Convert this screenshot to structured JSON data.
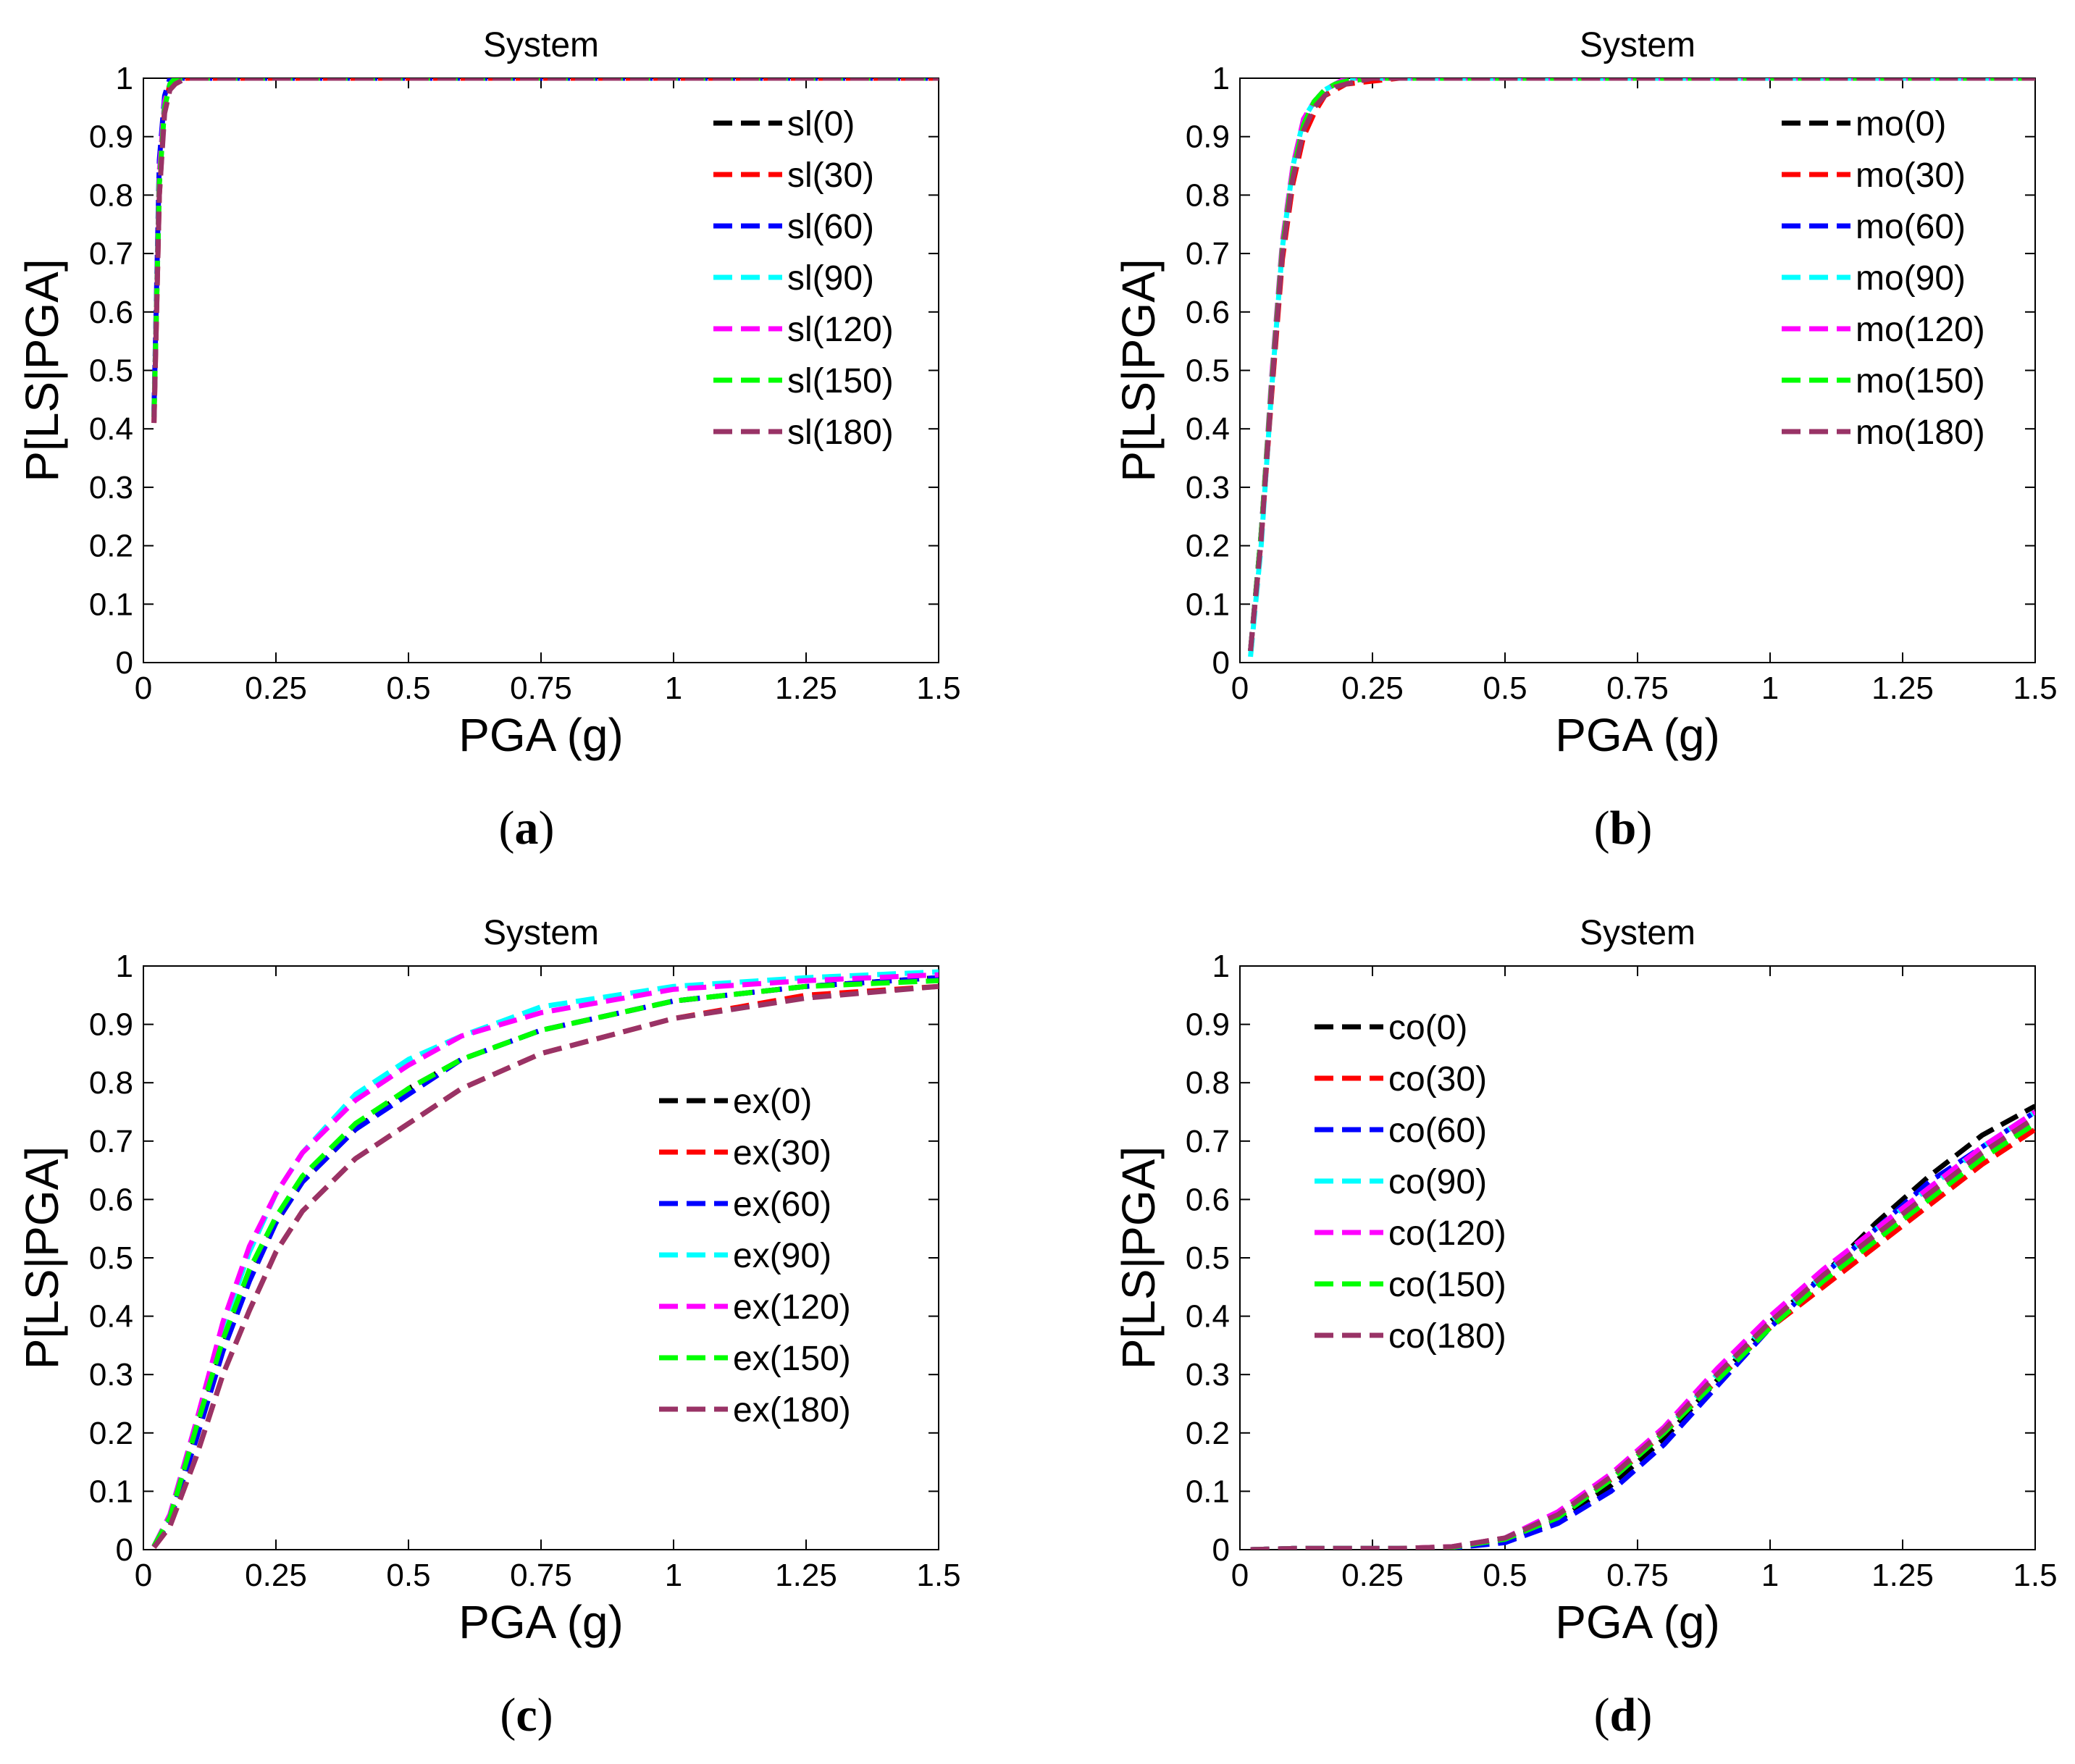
{
  "series_names": [
    "0",
    "30",
    "60",
    "90",
    "120",
    "150",
    "180"
  ],
  "series_colors": [
    "#000000",
    "#ff0000",
    "#0000ff",
    "#00ffff",
    "#ff00ff",
    "#00ff00",
    "#993366"
  ],
  "chart_data": [
    {
      "type": "line",
      "panel": "a",
      "caption_letter": "a",
      "title": "System",
      "xlabel": "PGA (g)",
      "ylabel": "P[LS|PGA]",
      "xlim": [
        0,
        1.5
      ],
      "ylim": [
        0,
        1
      ],
      "xticks": [
        "0",
        "0.25",
        "0.5",
        "0.75",
        "1",
        "1.25",
        "1.5"
      ],
      "yticks": [
        "0",
        "0.1",
        "0.2",
        "0.3",
        "0.4",
        "0.5",
        "0.6",
        "0.7",
        "0.8",
        "0.9",
        "1"
      ],
      "legend_position": "top-right",
      "x": [
        0.02,
        0.03,
        0.04,
        0.05,
        0.06,
        0.08,
        0.1,
        0.2,
        0.5,
        1.0,
        1.5
      ],
      "series": [
        {
          "name": "sl(0)",
          "values": [
            0.42,
            0.82,
            0.96,
            0.99,
            1.0,
            1.0,
            1.0,
            1.0,
            1.0,
            1.0,
            1.0
          ]
        },
        {
          "name": "sl(30)",
          "values": [
            0.41,
            0.8,
            0.95,
            0.99,
            1.0,
            1.0,
            1.0,
            1.0,
            1.0,
            1.0,
            1.0
          ]
        },
        {
          "name": "sl(60)",
          "values": [
            0.43,
            0.86,
            0.97,
            1.0,
            1.0,
            1.0,
            1.0,
            1.0,
            1.0,
            1.0,
            1.0
          ]
        },
        {
          "name": "sl(90)",
          "values": [
            0.42,
            0.83,
            0.96,
            0.99,
            1.0,
            1.0,
            1.0,
            1.0,
            1.0,
            1.0,
            1.0
          ]
        },
        {
          "name": "sl(120)",
          "values": [
            0.42,
            0.84,
            0.96,
            0.99,
            1.0,
            1.0,
            1.0,
            1.0,
            1.0,
            1.0,
            1.0
          ]
        },
        {
          "name": "sl(150)",
          "values": [
            0.42,
            0.82,
            0.95,
            0.99,
            1.0,
            1.0,
            1.0,
            1.0,
            1.0,
            1.0,
            1.0
          ]
        },
        {
          "name": "sl(180)",
          "values": [
            0.41,
            0.8,
            0.94,
            0.98,
            0.99,
            1.0,
            1.0,
            1.0,
            1.0,
            1.0,
            1.0
          ]
        }
      ]
    },
    {
      "type": "line",
      "panel": "b",
      "caption_letter": "b",
      "title": "System",
      "xlabel": "PGA (g)",
      "ylabel": "P[LS|PGA]",
      "xlim": [
        0,
        1.5
      ],
      "ylim": [
        0,
        1
      ],
      "xticks": [
        "0",
        "0.25",
        "0.5",
        "0.75",
        "1",
        "1.25",
        "1.5"
      ],
      "yticks": [
        "0",
        "0.1",
        "0.2",
        "0.3",
        "0.4",
        "0.5",
        "0.6",
        "0.7",
        "0.8",
        "0.9",
        "1"
      ],
      "legend_position": "top-right",
      "x": [
        0.02,
        0.04,
        0.06,
        0.08,
        0.1,
        0.12,
        0.14,
        0.16,
        0.18,
        0.2,
        0.25,
        0.3,
        0.5,
        1.0,
        1.5
      ],
      "series": [
        {
          "name": "mo(0)",
          "values": [
            0.02,
            0.22,
            0.48,
            0.71,
            0.84,
            0.92,
            0.96,
            0.98,
            0.99,
            0.995,
            1.0,
            1.0,
            1.0,
            1.0,
            1.0
          ]
        },
        {
          "name": "mo(30)",
          "values": [
            0.02,
            0.21,
            0.46,
            0.69,
            0.82,
            0.9,
            0.94,
            0.97,
            0.98,
            0.99,
            0.995,
            1.0,
            1.0,
            1.0,
            1.0
          ]
        },
        {
          "name": "mo(60)",
          "values": [
            0.02,
            0.22,
            0.48,
            0.71,
            0.84,
            0.92,
            0.96,
            0.98,
            0.99,
            0.995,
            1.0,
            1.0,
            1.0,
            1.0,
            1.0
          ]
        },
        {
          "name": "mo(90)",
          "values": [
            0.01,
            0.2,
            0.47,
            0.71,
            0.85,
            0.93,
            0.96,
            0.98,
            0.99,
            1.0,
            1.0,
            1.0,
            1.0,
            1.0,
            1.0
          ]
        },
        {
          "name": "mo(120)",
          "values": [
            0.02,
            0.22,
            0.49,
            0.72,
            0.85,
            0.93,
            0.96,
            0.98,
            0.99,
            1.0,
            1.0,
            1.0,
            1.0,
            1.0,
            1.0
          ]
        },
        {
          "name": "mo(150)",
          "values": [
            0.02,
            0.22,
            0.48,
            0.71,
            0.84,
            0.92,
            0.96,
            0.98,
            0.99,
            0.995,
            1.0,
            1.0,
            1.0,
            1.0,
            1.0
          ]
        },
        {
          "name": "mo(180)",
          "values": [
            0.02,
            0.21,
            0.47,
            0.7,
            0.83,
            0.91,
            0.95,
            0.97,
            0.985,
            0.99,
            1.0,
            1.0,
            1.0,
            1.0,
            1.0
          ]
        }
      ]
    },
    {
      "type": "line",
      "panel": "c",
      "caption_letter": "c",
      "title": "System",
      "xlabel": "PGA (g)",
      "ylabel": "P[LS|PGA]",
      "xlim": [
        0,
        1.5
      ],
      "ylim": [
        0,
        1
      ],
      "xticks": [
        "0",
        "0.25",
        "0.5",
        "0.75",
        "1",
        "1.25",
        "1.5"
      ],
      "yticks": [
        "0",
        "0.1",
        "0.2",
        "0.3",
        "0.4",
        "0.5",
        "0.6",
        "0.7",
        "0.8",
        "0.9",
        "1"
      ],
      "legend_position": "middle-right",
      "x": [
        0.02,
        0.05,
        0.1,
        0.15,
        0.2,
        0.25,
        0.3,
        0.4,
        0.5,
        0.6,
        0.75,
        1.0,
        1.25,
        1.5
      ],
      "series": [
        {
          "name": "ex(0)",
          "values": [
            0.005,
            0.05,
            0.2,
            0.35,
            0.47,
            0.56,
            0.63,
            0.72,
            0.79,
            0.84,
            0.89,
            0.94,
            0.965,
            0.98
          ]
        },
        {
          "name": "ex(30)",
          "values": [
            0.004,
            0.04,
            0.16,
            0.3,
            0.41,
            0.51,
            0.58,
            0.67,
            0.73,
            0.79,
            0.85,
            0.91,
            0.95,
            0.965
          ]
        },
        {
          "name": "ex(60)",
          "values": [
            0.005,
            0.05,
            0.19,
            0.34,
            0.46,
            0.56,
            0.63,
            0.72,
            0.78,
            0.84,
            0.89,
            0.94,
            0.965,
            0.98
          ]
        },
        {
          "name": "ex(90)",
          "values": [
            0.006,
            0.06,
            0.22,
            0.38,
            0.51,
            0.61,
            0.68,
            0.78,
            0.84,
            0.88,
            0.93,
            0.965,
            0.98,
            0.99
          ]
        },
        {
          "name": "ex(120)",
          "values": [
            0.006,
            0.06,
            0.22,
            0.39,
            0.52,
            0.61,
            0.68,
            0.77,
            0.83,
            0.88,
            0.92,
            0.96,
            0.975,
            0.985
          ]
        },
        {
          "name": "ex(150)",
          "values": [
            0.006,
            0.055,
            0.21,
            0.36,
            0.48,
            0.57,
            0.64,
            0.73,
            0.79,
            0.84,
            0.89,
            0.94,
            0.965,
            0.975
          ]
        },
        {
          "name": "ex(180)",
          "values": [
            0.004,
            0.04,
            0.16,
            0.3,
            0.41,
            0.51,
            0.58,
            0.67,
            0.73,
            0.79,
            0.85,
            0.91,
            0.945,
            0.965
          ]
        }
      ]
    },
    {
      "type": "line",
      "panel": "d",
      "caption_letter": "d",
      "title": "System",
      "xlabel": "PGA (g)",
      "ylabel": "P[LS|PGA]",
      "xlim": [
        0,
        1.5
      ],
      "ylim": [
        0,
        1
      ],
      "xticks": [
        "0",
        "0.25",
        "0.5",
        "0.75",
        "1",
        "1.25",
        "1.5"
      ],
      "yticks": [
        "0",
        "0.1",
        "0.2",
        "0.3",
        "0.4",
        "0.5",
        "0.6",
        "0.7",
        "0.8",
        "0.9",
        "1"
      ],
      "legend_position": "top-left",
      "x": [
        0.02,
        0.1,
        0.2,
        0.3,
        0.4,
        0.5,
        0.6,
        0.7,
        0.8,
        0.9,
        1.0,
        1.1,
        1.2,
        1.3,
        1.4,
        1.5
      ],
      "series": [
        {
          "name": "co(0)",
          "values": [
            0.0,
            0.002,
            0.002,
            0.002,
            0.003,
            0.015,
            0.05,
            0.11,
            0.19,
            0.29,
            0.39,
            0.47,
            0.56,
            0.64,
            0.71,
            0.76
          ]
        },
        {
          "name": "co(30)",
          "values": [
            0.0,
            0.002,
            0.002,
            0.002,
            0.005,
            0.02,
            0.06,
            0.12,
            0.2,
            0.29,
            0.38,
            0.45,
            0.52,
            0.59,
            0.66,
            0.72
          ]
        },
        {
          "name": "co(60)",
          "values": [
            0.0,
            0.002,
            0.002,
            0.002,
            0.003,
            0.012,
            0.045,
            0.1,
            0.18,
            0.28,
            0.38,
            0.47,
            0.55,
            0.63,
            0.69,
            0.75
          ]
        },
        {
          "name": "co(90)",
          "values": [
            0.0,
            0.002,
            0.002,
            0.002,
            0.004,
            0.018,
            0.055,
            0.12,
            0.2,
            0.3,
            0.39,
            0.47,
            0.55,
            0.62,
            0.69,
            0.75
          ]
        },
        {
          "name": "co(120)",
          "values": [
            0.0,
            0.002,
            0.002,
            0.002,
            0.005,
            0.02,
            0.065,
            0.13,
            0.21,
            0.31,
            0.4,
            0.48,
            0.55,
            0.62,
            0.69,
            0.75
          ]
        },
        {
          "name": "co(150)",
          "values": [
            0.0,
            0.002,
            0.002,
            0.002,
            0.004,
            0.018,
            0.055,
            0.12,
            0.2,
            0.29,
            0.38,
            0.46,
            0.53,
            0.6,
            0.67,
            0.73
          ]
        },
        {
          "name": "co(180)",
          "values": [
            0.0,
            0.002,
            0.002,
            0.002,
            0.005,
            0.02,
            0.06,
            0.125,
            0.205,
            0.3,
            0.39,
            0.47,
            0.54,
            0.61,
            0.68,
            0.74
          ]
        }
      ]
    }
  ]
}
